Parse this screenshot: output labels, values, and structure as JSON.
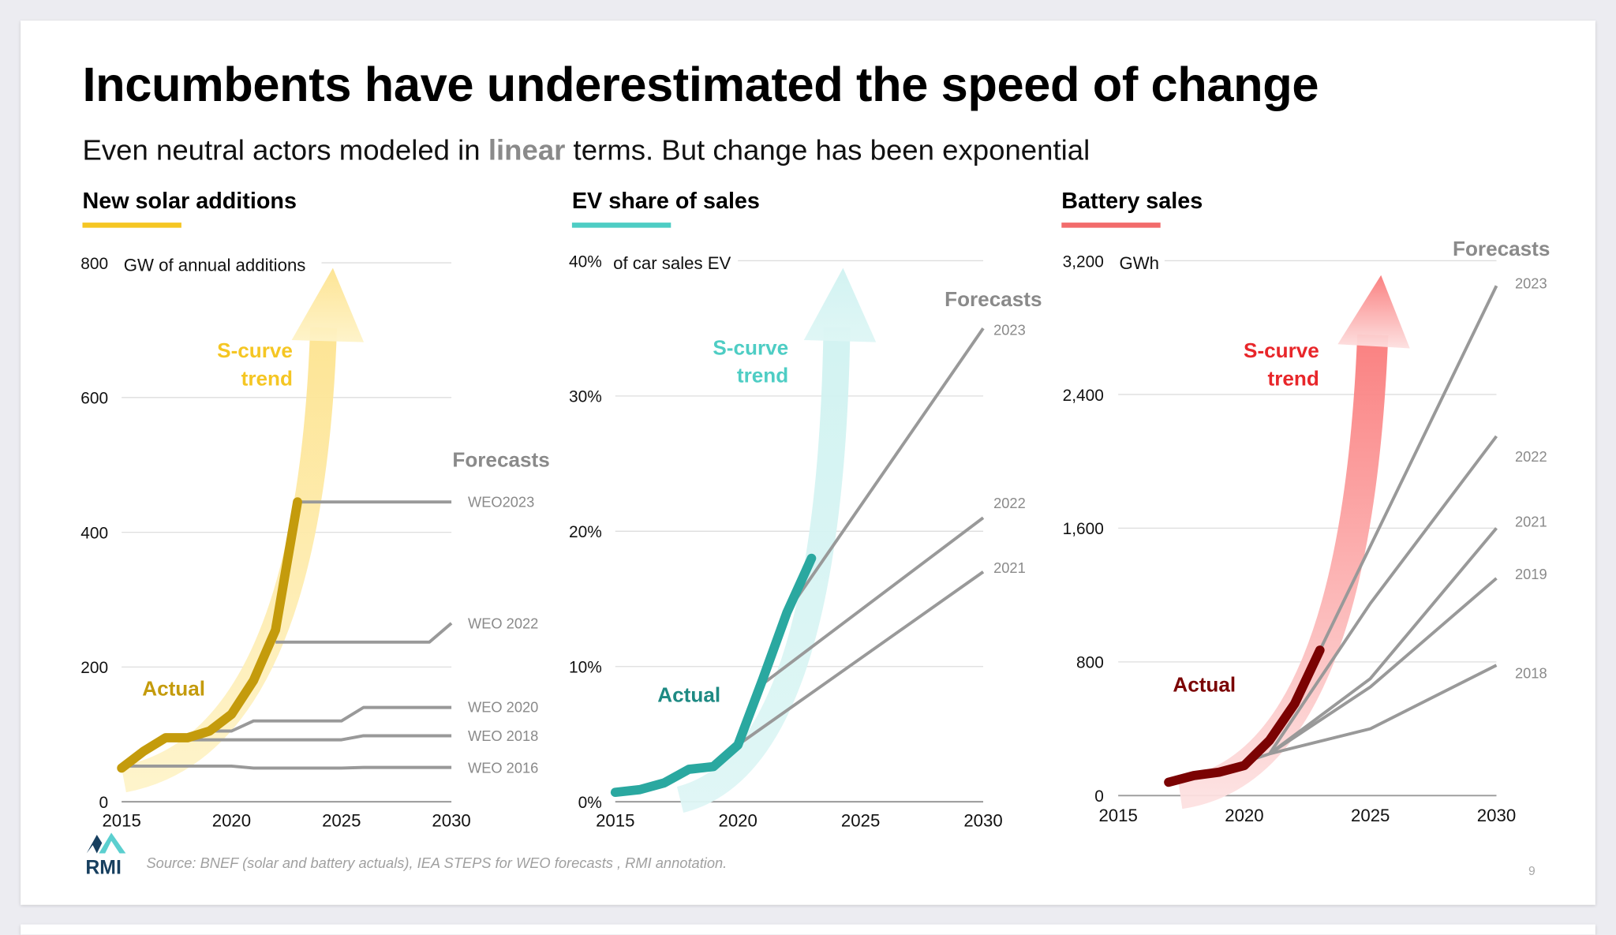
{
  "header": {
    "title": "Incumbents have underestimated the speed of change",
    "subtitle_before": "Even neutral actors modeled in ",
    "subtitle_emphasis": "linear",
    "subtitle_after": " terms. But change has been exponential"
  },
  "footer": {
    "logo_text": "RMI",
    "source": "Source: BNEF (solar and battery actuals), IEA STEPS for WEO forecasts , RMI annotation.",
    "page_number": "9"
  },
  "colors": {
    "solar": "#c49b0c",
    "solar_light": "#f5c623",
    "solar_arrow": "#fde9a0",
    "ev": "#2aa8a0",
    "ev_light": "#4ecdc4",
    "ev_dark": "#1e8a83",
    "ev_arrow": "#d3f3f2",
    "battery": "#7b0303",
    "battery_light": "#e8262a",
    "battery_arrow": "#fa7f7f",
    "forecast": "#999999"
  },
  "chart_data": [
    {
      "type": "line",
      "title": "New solar additions",
      "ylabel": "GW of annual additions",
      "xlim": [
        2015,
        2030
      ],
      "ylim": [
        0,
        800
      ],
      "x_ticks": [
        "2015",
        "2020",
        "2025",
        "2030"
      ],
      "y_ticks": [
        0,
        200,
        400,
        600,
        800
      ],
      "y_tick_labels": [
        "0",
        "200",
        "400",
        "600",
        "800"
      ],
      "grid": true,
      "forecasts_label": "Forecasts",
      "scurve_label": [
        "S-curve",
        "trend"
      ],
      "actual_label": "Actual",
      "actual": {
        "name": "Actual",
        "x": [
          2015,
          2016,
          2017,
          2018,
          2019,
          2020,
          2021,
          2022,
          2023
        ],
        "y": [
          50,
          75,
          95,
          95,
          105,
          130,
          180,
          255,
          445
        ]
      },
      "series": [
        {
          "name": "WEO2023",
          "x": [
            2023,
            2030
          ],
          "y": [
            445,
            445
          ]
        },
        {
          "name": "WEO 2022",
          "x": [
            2022,
            2029,
            2030
          ],
          "y": [
            237,
            237,
            265
          ]
        },
        {
          "name": "WEO 2020",
          "x": [
            2019,
            2020,
            2021,
            2025,
            2026,
            2030
          ],
          "y": [
            105,
            105,
            120,
            120,
            140,
            140
          ]
        },
        {
          "name": "WEO 2018",
          "x": [
            2017,
            2025,
            2026,
            2030
          ],
          "y": [
            92,
            92,
            98,
            98
          ]
        },
        {
          "name": "WEO 2016",
          "x": [
            2015,
            2020,
            2021,
            2025,
            2026,
            2030
          ],
          "y": [
            53,
            53,
            50,
            50,
            51,
            51
          ]
        }
      ]
    },
    {
      "type": "line",
      "title": "EV share of sales",
      "ylabel": "of car sales EV",
      "xlim": [
        2015,
        2030
      ],
      "ylim": [
        0,
        40
      ],
      "x_ticks": [
        "2015",
        "2020",
        "2025",
        "2030"
      ],
      "y_ticks": [
        0,
        10,
        20,
        30,
        40
      ],
      "y_tick_labels": [
        "0%",
        "10%",
        "20%",
        "30%",
        "40%"
      ],
      "grid": true,
      "forecasts_label": "Forecasts",
      "scurve_label": [
        "S-curve",
        "trend"
      ],
      "actual_label": "Actual",
      "actual": {
        "name": "Actual",
        "x": [
          2015,
          2016,
          2017,
          2018,
          2019,
          2020,
          2021,
          2022,
          2023
        ],
        "y": [
          0.7,
          0.9,
          1.4,
          2.4,
          2.6,
          4.2,
          9,
          14,
          18
        ]
      },
      "series": [
        {
          "name": "2023",
          "x": [
            2022,
            2030
          ],
          "y": [
            14,
            35
          ]
        },
        {
          "name": "2022",
          "x": [
            2021,
            2030
          ],
          "y": [
            8.7,
            21
          ]
        },
        {
          "name": "2021",
          "x": [
            2020,
            2030
          ],
          "y": [
            4.2,
            17
          ]
        }
      ]
    },
    {
      "type": "line",
      "title": "Battery sales",
      "ylabel": "GWh",
      "xlim": [
        2015,
        2030
      ],
      "ylim": [
        0,
        3200
      ],
      "x_ticks": [
        "2015",
        "2020",
        "2025",
        "2030"
      ],
      "y_ticks": [
        0,
        800,
        1600,
        2400,
        3200
      ],
      "y_tick_labels": [
        "0",
        "800",
        "1,600",
        "2,400",
        "3,200"
      ],
      "grid": true,
      "forecasts_label": "Forecasts",
      "scurve_label": [
        "S-curve",
        "trend"
      ],
      "actual_label": "Actual",
      "actual": {
        "name": "Actual",
        "x": [
          2017,
          2018,
          2019,
          2020,
          2021,
          2022,
          2023
        ],
        "y": [
          80,
          120,
          140,
          180,
          330,
          550,
          870
        ]
      },
      "series": [
        {
          "name": "2023",
          "x": [
            2023,
            2030
          ],
          "y": [
            870,
            3050
          ]
        },
        {
          "name": "2022",
          "x": [
            2021,
            2025,
            2030
          ],
          "y": [
            250,
            1150,
            2150
          ]
        },
        {
          "name": "2021",
          "x": [
            2021,
            2025,
            2030
          ],
          "y": [
            250,
            700,
            1600
          ]
        },
        {
          "name": "2019",
          "x": [
            2021,
            2025,
            2030
          ],
          "y": [
            250,
            650,
            1300
          ]
        },
        {
          "name": "2018",
          "x": [
            2020,
            2021,
            2025,
            2030
          ],
          "y": [
            200,
            250,
            400,
            780
          ]
        }
      ]
    }
  ]
}
